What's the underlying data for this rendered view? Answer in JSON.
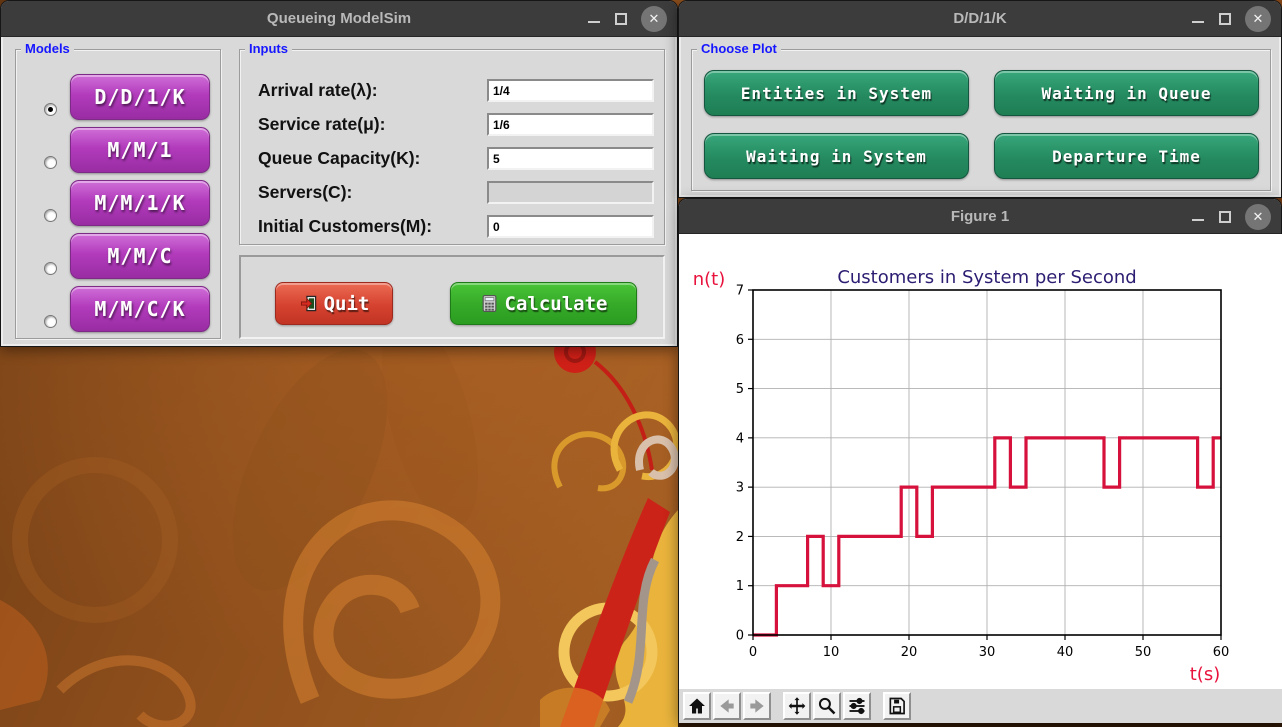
{
  "modelsim_window": {
    "title": "Queueing ModelSim",
    "models_group_label": "Models",
    "models": [
      {
        "label": "D/D/1/K",
        "selected": true
      },
      {
        "label": "M/M/1",
        "selected": false
      },
      {
        "label": "M/M/1/K",
        "selected": false
      },
      {
        "label": "M/M/C",
        "selected": false
      },
      {
        "label": "M/M/C/K",
        "selected": false
      }
    ],
    "inputs_group_label": "Inputs",
    "inputs": [
      {
        "label": "Arrival rate(λ):",
        "value": "1/4",
        "disabled": false
      },
      {
        "label": "Service rate(μ):",
        "value": "1/6",
        "disabled": false
      },
      {
        "label": "Queue Capacity(K):",
        "value": "5",
        "disabled": false
      },
      {
        "label": "Servers(C):",
        "value": "",
        "disabled": true
      },
      {
        "label": "Initial Customers(M):",
        "value": "0",
        "disabled": false
      }
    ],
    "quit_button": "Quit",
    "calculate_button": "Calculate"
  },
  "plot_window": {
    "title": "D/D/1/K",
    "group_label": "Choose Plot",
    "buttons": [
      "Entities in System",
      "Waiting in Queue",
      "Waiting in System",
      "Departure Time"
    ]
  },
  "figure_window": {
    "title": "Figure 1",
    "toolbar_icons": [
      "home",
      "back",
      "forward",
      "pan",
      "zoom",
      "configure-subplots",
      "save"
    ]
  },
  "window_controls": {
    "minimize_glyph": "",
    "maximize_glyph": "",
    "close_glyph": "✕"
  },
  "chart_data": {
    "type": "line",
    "step_style": "post",
    "title": "Customers in System per Second",
    "xlabel": "t(s)",
    "ylabel": "n(t)",
    "xlim": [
      0,
      60
    ],
    "ylim": [
      0,
      7
    ],
    "xticks": [
      0,
      10,
      20,
      30,
      40,
      50,
      60
    ],
    "yticks": [
      0,
      1,
      2,
      3,
      4,
      5,
      6,
      7
    ],
    "grid": true,
    "legend": "none",
    "line_color": "#d5113c",
    "title_color": "#2d1d72",
    "axis_label_color": "#e8123c",
    "grid_color": "#b0b0b0",
    "points": [
      [
        0,
        0
      ],
      [
        3,
        1
      ],
      [
        7,
        2
      ],
      [
        9,
        1
      ],
      [
        11,
        2
      ],
      [
        19,
        3
      ],
      [
        21,
        2
      ],
      [
        23,
        3
      ],
      [
        31,
        4
      ],
      [
        33,
        3
      ],
      [
        35,
        4
      ],
      [
        45,
        3
      ],
      [
        47,
        4
      ],
      [
        57,
        3
      ],
      [
        59,
        4
      ],
      [
        60,
        4
      ]
    ]
  }
}
